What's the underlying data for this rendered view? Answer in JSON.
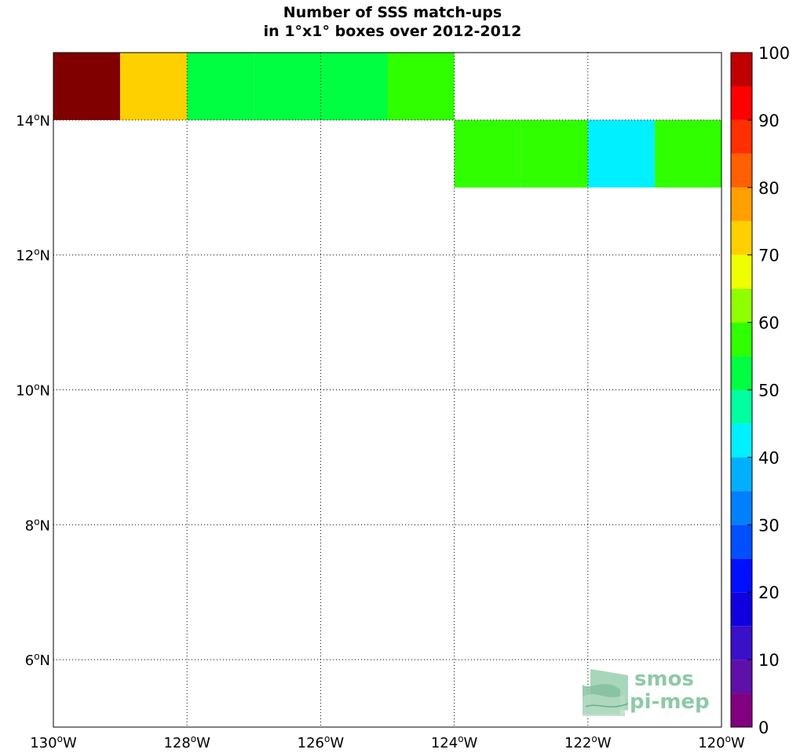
{
  "chart_data": {
    "type": "heatmap",
    "title_lines": [
      "Number of SSS match-ups",
      "in 1°x1° boxes over 2012-2012"
    ],
    "x_range": [
      -130,
      -120
    ],
    "y_range": [
      5,
      15
    ],
    "x_ticks": [
      {
        "value": -130,
        "label": "130",
        "suffix": "W"
      },
      {
        "value": -128,
        "label": "128",
        "suffix": "W"
      },
      {
        "value": -126,
        "label": "126",
        "suffix": "W"
      },
      {
        "value": -124,
        "label": "124",
        "suffix": "W"
      },
      {
        "value": -122,
        "label": "122",
        "suffix": "W"
      },
      {
        "value": -120,
        "label": "120",
        "suffix": "W"
      }
    ],
    "y_ticks": [
      {
        "value": 6,
        "label": "6",
        "suffix": "N"
      },
      {
        "value": 8,
        "label": "8",
        "suffix": "N"
      },
      {
        "value": 10,
        "label": "10",
        "suffix": "N"
      },
      {
        "value": 12,
        "label": "12",
        "suffix": "N"
      },
      {
        "value": 14,
        "label": "14",
        "suffix": "N"
      }
    ],
    "grid": "dotted",
    "cells": [
      {
        "lon": -130,
        "lat": 14,
        "value": 97
      },
      {
        "lon": -129,
        "lat": 14,
        "value": 73
      },
      {
        "lon": -128,
        "lat": 14,
        "value": 52
      },
      {
        "lon": -127,
        "lat": 14,
        "value": 52
      },
      {
        "lon": -126,
        "lat": 14,
        "value": 52
      },
      {
        "lon": -125,
        "lat": 14,
        "value": 57
      },
      {
        "lon": -124,
        "lat": 13,
        "value": 57
      },
      {
        "lon": -123,
        "lat": 13,
        "value": 57
      },
      {
        "lon": -122,
        "lat": 13,
        "value": 43
      },
      {
        "lon": -121,
        "lat": 13,
        "value": 57
      }
    ],
    "colorbar": {
      "min": 0,
      "max": 100,
      "step": 5,
      "ticks": [
        0,
        10,
        20,
        30,
        40,
        50,
        60,
        70,
        80,
        90,
        100
      ],
      "colors": [
        "#800080",
        "#5e10a8",
        "#3a10c8",
        "#1000e0",
        "#0010ff",
        "#0050ff",
        "#0080ff",
        "#00b0ff",
        "#00f0ff",
        "#00ffa0",
        "#00ff40",
        "#30ff00",
        "#90ff00",
        "#f0ff00",
        "#ffd000",
        "#ffa000",
        "#ff6000",
        "#ff3000",
        "#ff0000",
        "#c00000"
      ]
    }
  },
  "logo": {
    "line1": "smos",
    "line2": "pi-mep"
  },
  "colors": {
    "top_bin": "#800000"
  }
}
